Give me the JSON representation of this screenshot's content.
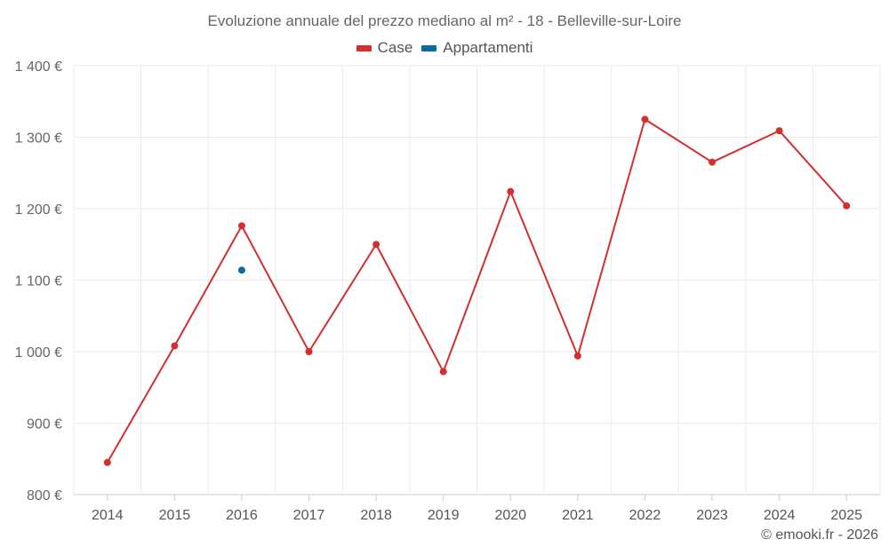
{
  "chart_data": {
    "type": "line",
    "title": "Evoluzione annuale del prezzo mediano al m² - 18 - Belleville-sur-Loire",
    "categories": [
      "2014",
      "2015",
      "2016",
      "2017",
      "2018",
      "2019",
      "2020",
      "2021",
      "2022",
      "2023",
      "2024",
      "2025"
    ],
    "series": [
      {
        "name": "Case",
        "color": "#d32f2f",
        "values": [
          845,
          1008,
          1176,
          1000,
          1150,
          972,
          1224,
          994,
          1325,
          1265,
          1309,
          1204
        ]
      },
      {
        "name": "Appartamenti",
        "color": "#0a6aa1",
        "values": [
          null,
          null,
          1114,
          null,
          null,
          null,
          null,
          null,
          null,
          null,
          null,
          null
        ]
      }
    ],
    "ylim": [
      800,
      1400
    ],
    "yticks": [
      800,
      900,
      1000,
      1100,
      1200,
      1300,
      1400
    ],
    "ytick_labels": [
      "800 €",
      "900 €",
      "1 000 €",
      "1 100 €",
      "1 200 €",
      "1 300 €",
      "1 400 €"
    ],
    "xlabel": "",
    "ylabel": "",
    "grid": true
  },
  "footer": {
    "credit": "© emooki.fr - 2026"
  }
}
